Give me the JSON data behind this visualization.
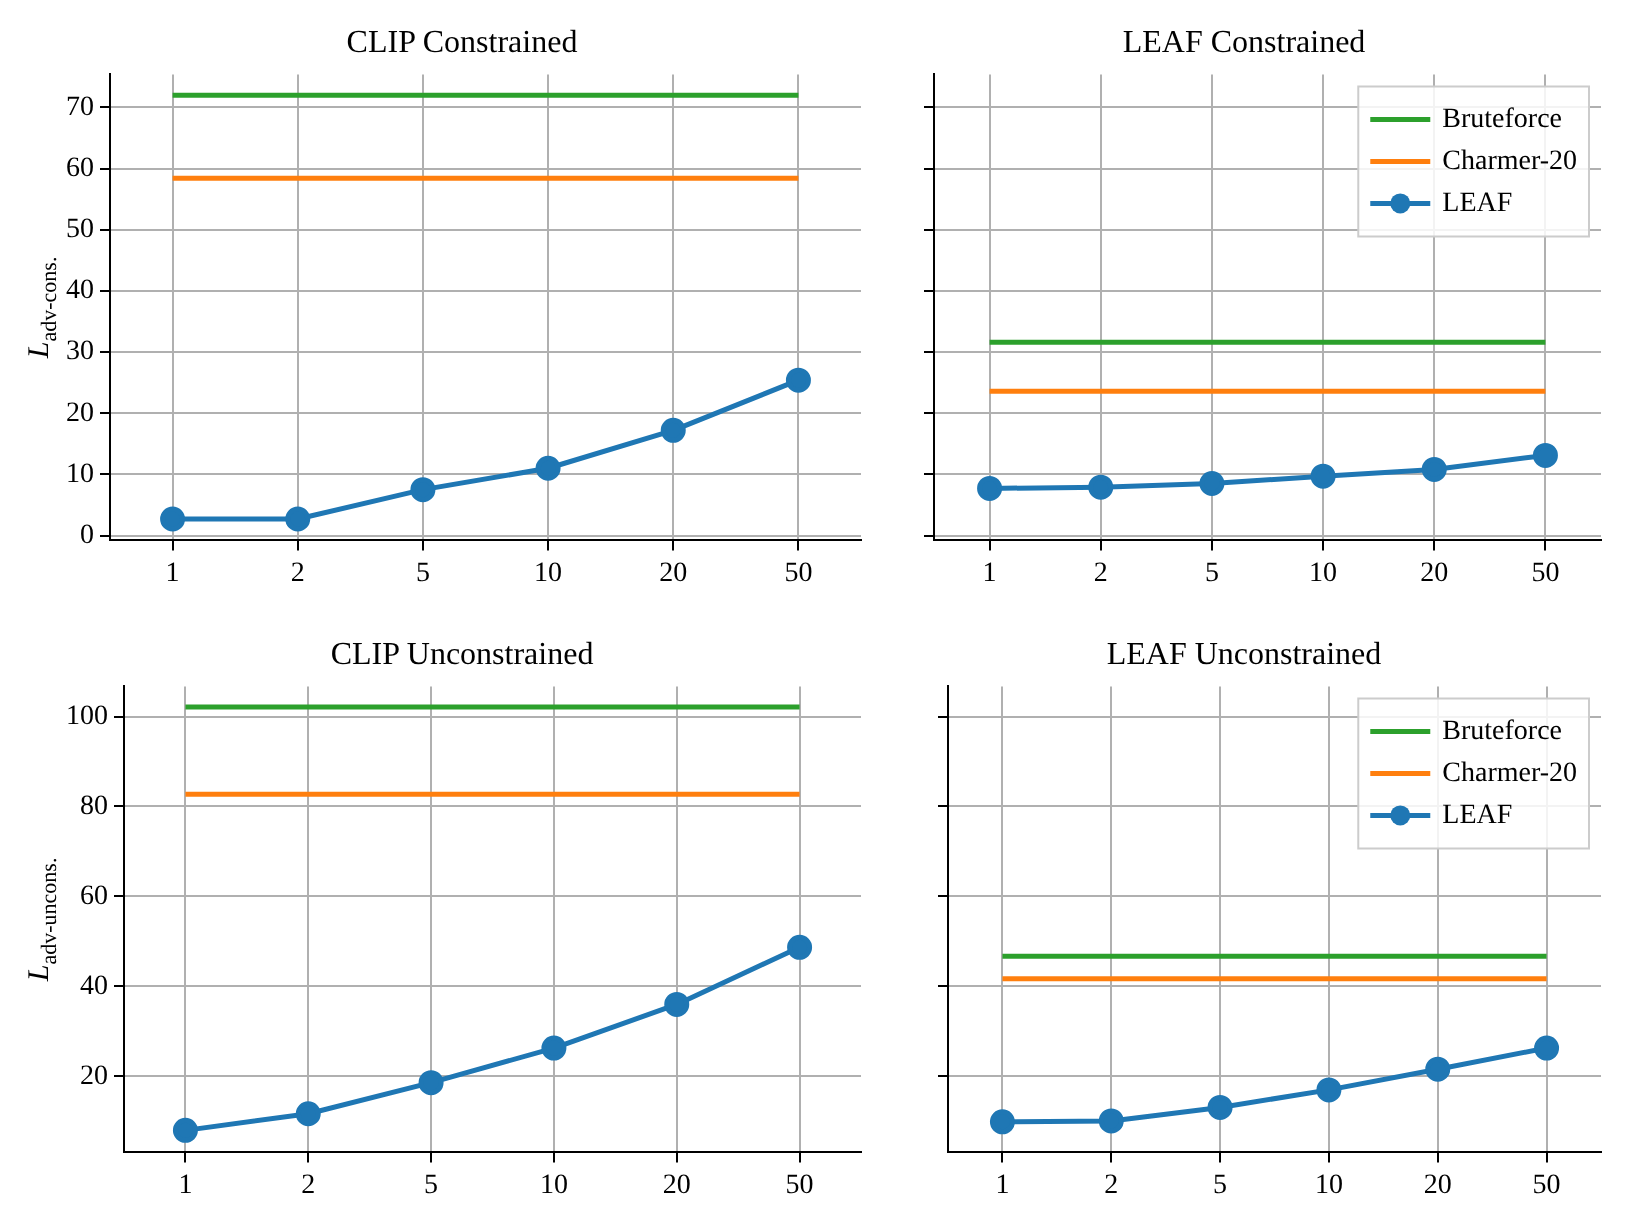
{
  "chart_data": [
    {
      "type": "line",
      "title": "CLIP Constrained",
      "ylabel": "L$_{adv-cons.}$",
      "categories": [
        "1",
        "2",
        "5",
        "10",
        "20",
        "50"
      ],
      "ylim": [
        -0.8,
        75.4
      ],
      "yticks": [
        0,
        10,
        20,
        30,
        40,
        50,
        60,
        70
      ],
      "grid": true,
      "legend": false,
      "series": [
        {
          "color": "#2ca02c",
          "marker": "none",
          "values": [
            72.0,
            72.0,
            72.0,
            72.0,
            72.0,
            72.0
          ]
        },
        {
          "color": "#ff7f0e",
          "marker": "none",
          "values": [
            58.4,
            58.4,
            58.4,
            58.4,
            58.4,
            58.4
          ]
        },
        {
          "color": "#1f77b4",
          "marker": "circle",
          "values": [
            2.7,
            2.7,
            7.5,
            11.0,
            17.2,
            25.4
          ]
        }
      ]
    },
    {
      "type": "line",
      "title": "LEAF Constrained",
      "categories": [
        "1",
        "2",
        "5",
        "10",
        "20",
        "50"
      ],
      "ylim": [
        -0.8,
        75.4
      ],
      "yticks": [
        0,
        10,
        20,
        30,
        40,
        50,
        60,
        70
      ],
      "tick_labels": "x",
      "grid": true,
      "legend": "top right",
      "series": [
        {
          "name": "Bruteforce",
          "color": "#2ca02c",
          "marker": "none",
          "values": [
            31.6,
            31.6,
            31.6,
            31.6,
            31.6,
            31.6
          ]
        },
        {
          "name": "Charmer-20",
          "color": "#ff7f0e",
          "marker": "none",
          "values": [
            23.6,
            23.6,
            23.6,
            23.6,
            23.6,
            23.6
          ]
        },
        {
          "name": "LEAF",
          "color": "#1f77b4",
          "marker": "circle",
          "values": [
            7.7,
            7.9,
            8.5,
            9.7,
            10.8,
            13.1
          ]
        }
      ]
    },
    {
      "type": "line",
      "title": "CLIP Unconstrained",
      "ylabel": "L$_{adv-uncons.}$",
      "categories": [
        "1",
        "2",
        "5",
        "10",
        "20",
        "50"
      ],
      "ylim": [
        3.1,
        106.7
      ],
      "yticks": [
        20,
        40,
        60,
        80,
        100
      ],
      "grid": true,
      "legend": false,
      "series": [
        {
          "color": "#2ca02c",
          "marker": "none",
          "values": [
            102.1,
            102.1,
            102.1,
            102.1,
            102.1,
            102.1
          ]
        },
        {
          "color": "#ff7f0e",
          "marker": "none",
          "values": [
            82.7,
            82.7,
            82.7,
            82.7,
            82.7,
            82.7
          ]
        },
        {
          "color": "#1f77b4",
          "marker": "circle",
          "values": [
            8.0,
            11.7,
            18.6,
            26.3,
            36.0,
            48.7
          ]
        }
      ]
    },
    {
      "type": "line",
      "title": "LEAF Unconstrained",
      "categories": [
        "1",
        "2",
        "5",
        "10",
        "20",
        "50"
      ],
      "ylim": [
        3.1,
        106.7
      ],
      "yticks": [
        20,
        40,
        60,
        80,
        100
      ],
      "tick_labels": "x",
      "grid": true,
      "legend": "top right",
      "series": [
        {
          "name": "Bruteforce",
          "color": "#2ca02c",
          "marker": "none",
          "values": [
            46.7,
            46.7,
            46.7,
            46.7,
            46.7,
            46.7
          ]
        },
        {
          "name": "Charmer-20",
          "color": "#ff7f0e",
          "marker": "none",
          "values": [
            41.7,
            41.7,
            41.7,
            41.7,
            41.7,
            41.7
          ]
        },
        {
          "name": "LEAF",
          "color": "#1f77b4",
          "marker": "circle",
          "values": [
            9.9,
            10.1,
            13.1,
            17.0,
            21.6,
            26.3
          ]
        }
      ]
    }
  ]
}
